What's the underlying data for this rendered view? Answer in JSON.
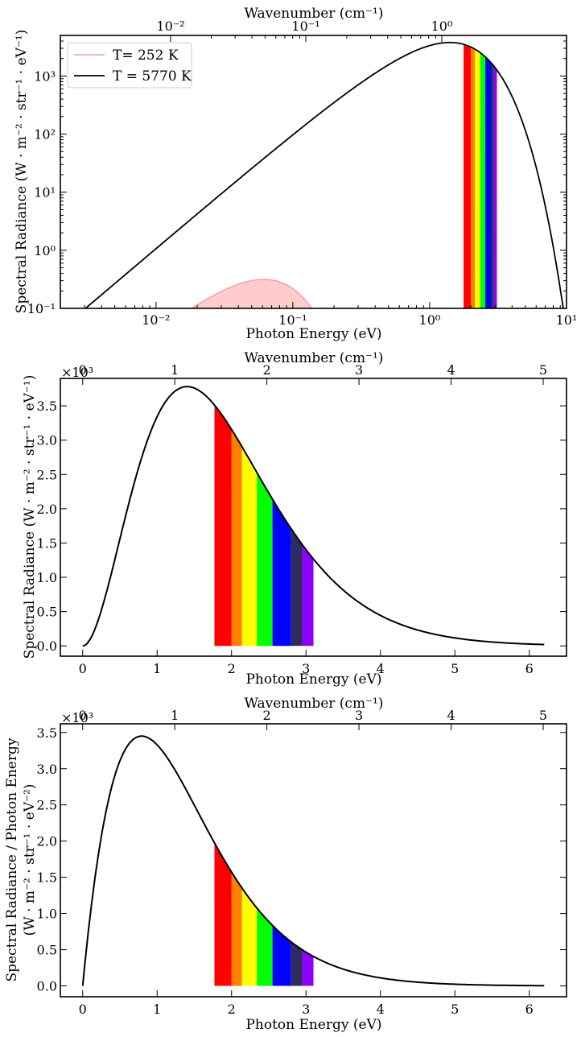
{
  "colors": {
    "curve_hot": "#000000",
    "curve_cold": "#f4a3a3",
    "fill_cold": "#ffcccc",
    "bands": [
      "#ff0000",
      "#ff8000",
      "#ffff00",
      "#00ff00",
      "#0000ff",
      "#2e2b5f",
      "#8b00ff"
    ]
  },
  "chart_data": [
    {
      "type": "line",
      "scale": "log-log",
      "top_axis_label": "Wavenumber (cm⁻¹)",
      "top_ticks": [
        "10⁻²",
        "10⁻¹",
        "10⁰"
      ],
      "xlabel": "Photon Energy (eV)",
      "ylabel": "Spectral Radiance (W · m⁻² · str⁻¹ · eV⁻¹)",
      "xlim": [
        0.002,
        10
      ],
      "ylim": [
        0.1,
        5000
      ],
      "x_ticks": [
        "10⁻²",
        "10⁻¹",
        "10⁰",
        "10¹"
      ],
      "y_ticks": [
        "10⁻¹",
        "10⁰",
        "10¹",
        "10²",
        "10³"
      ],
      "legend": {
        "placement": "top-left",
        "entries": [
          "T= 252 K",
          "T = 5770 K"
        ]
      },
      "series": [
        {
          "name": "T= 252 K",
          "temperature_K": 252,
          "filled": true
        },
        {
          "name": "T = 5770 K",
          "temperature_K": 5770,
          "filled": false
        }
      ],
      "visible_bands_eV": [
        [
          1.77,
          2.0
        ],
        [
          2.0,
          2.14
        ],
        [
          2.14,
          2.34
        ],
        [
          2.34,
          2.55
        ],
        [
          2.55,
          2.8
        ],
        [
          2.8,
          2.95
        ],
        [
          2.95,
          3.1
        ]
      ]
    },
    {
      "type": "line",
      "scale": "linear",
      "top_axis_label": "Wavenumber (cm⁻¹)",
      "top_ticks": [
        "0",
        "1",
        "2",
        "3",
        "4",
        "5"
      ],
      "multiplier": "×10³",
      "xlabel": "Photon Energy (eV)",
      "ylabel": "Spectral Radiance (W · m⁻² · str⁻¹ · eV⁻¹)",
      "xlim": [
        -0.3,
        6.5
      ],
      "ylim": [
        -0.15,
        3.9
      ],
      "x_ticks": [
        "0",
        "1",
        "2",
        "3",
        "4",
        "5",
        "6"
      ],
      "y_ticks": [
        "0.0",
        "0.5",
        "1.0",
        "1.5",
        "2.0",
        "2.5",
        "3.0",
        "3.5"
      ],
      "series": [
        {
          "temperature_K": 5770,
          "x_max_eV": 6.2,
          "peak_value": 3.78,
          "peak_eV": 1.41
        }
      ],
      "visible_bands_eV": [
        [
          1.77,
          2.0
        ],
        [
          2.0,
          2.14
        ],
        [
          2.14,
          2.34
        ],
        [
          2.34,
          2.55
        ],
        [
          2.55,
          2.8
        ],
        [
          2.8,
          2.95
        ],
        [
          2.95,
          3.1
        ]
      ]
    },
    {
      "type": "line",
      "scale": "linear",
      "top_axis_label": "Wavenumber (cm⁻¹)",
      "top_ticks": [
        "0",
        "1",
        "2",
        "3",
        "4",
        "5"
      ],
      "multiplier": "×10³",
      "xlabel": "Photon Energy (eV)",
      "ylabel_lines": [
        "Spectral Radiance / Photon Energy",
        "(W · m⁻² · str⁻¹ · eV⁻²)"
      ],
      "xlim": [
        -0.3,
        6.5
      ],
      "ylim": [
        -0.15,
        3.62
      ],
      "x_ticks": [
        "0",
        "1",
        "2",
        "3",
        "4",
        "5",
        "6"
      ],
      "y_ticks": [
        "0.0",
        "0.5",
        "1.0",
        "1.5",
        "2.0",
        "2.5",
        "3.0",
        "3.5"
      ],
      "series": [
        {
          "temperature_K": 5770,
          "x_max_eV": 6.2,
          "peak_value": 3.45,
          "peak_eV": 0.8
        }
      ],
      "visible_bands_eV": [
        [
          1.77,
          2.0
        ],
        [
          2.0,
          2.14
        ],
        [
          2.14,
          2.34
        ],
        [
          2.34,
          2.55
        ],
        [
          2.55,
          2.8
        ],
        [
          2.8,
          2.95
        ],
        [
          2.95,
          3.1
        ]
      ]
    }
  ]
}
